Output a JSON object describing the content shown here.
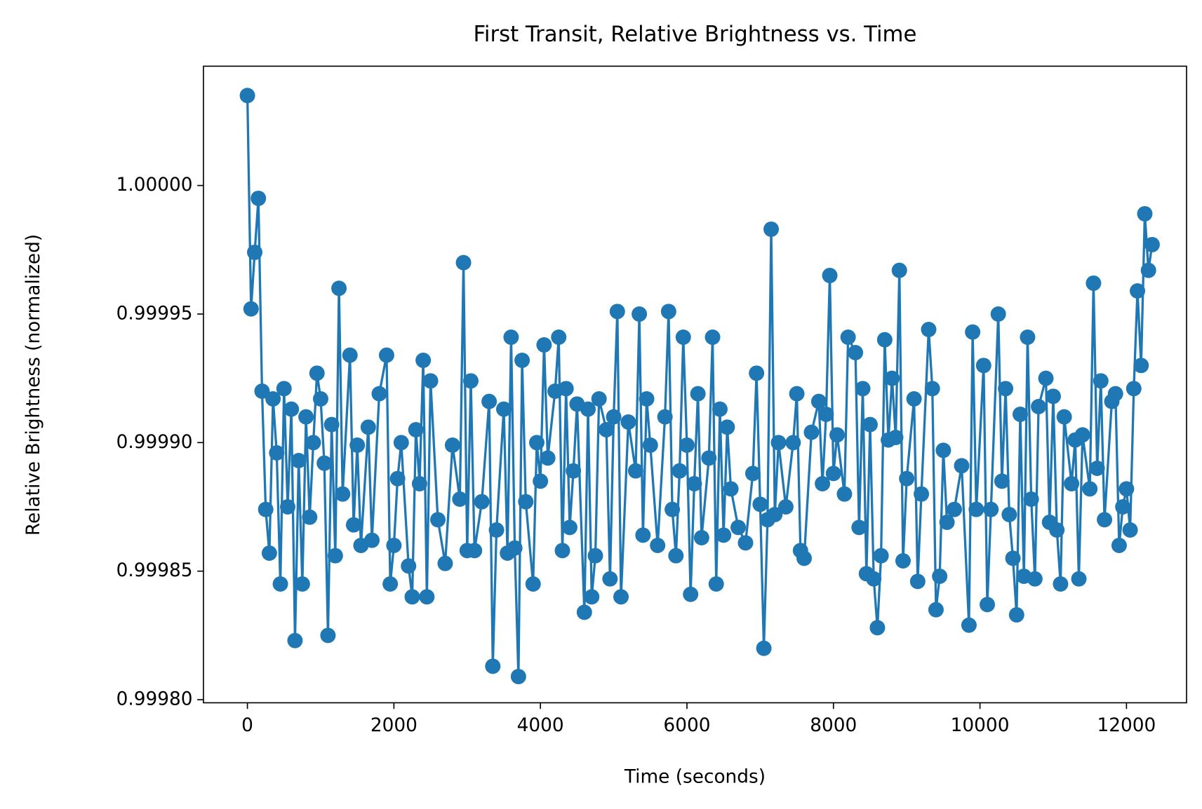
{
  "chart_data": {
    "type": "line",
    "title": "First Transit, Relative Brightness vs. Time",
    "xlabel": "Time (seconds)",
    "ylabel": "Relative Brightness (normalized)",
    "color": "#1f77b4",
    "marker": true,
    "grid": false,
    "xlim": [
      -600,
      12820
    ],
    "ylim": [
      0.9997988,
      1.0000464
    ],
    "xticks": [
      0,
      2000,
      4000,
      6000,
      8000,
      10000,
      12000
    ],
    "yticks": [
      {
        "value": 0.9998,
        "label": "0.99980"
      },
      {
        "value": 0.99985,
        "label": "0.99985"
      },
      {
        "value": 0.9999,
        "label": "0.99990"
      },
      {
        "value": 0.99995,
        "label": "0.99995"
      },
      {
        "value": 1.0,
        "label": "1.00000"
      }
    ],
    "x": [
      0,
      50,
      100,
      150,
      200,
      250,
      300,
      350,
      400,
      450,
      500,
      550,
      600,
      650,
      700,
      750,
      800,
      850,
      900,
      950,
      1000,
      1050,
      1100,
      1150,
      1200,
      1250,
      1300,
      1400,
      1450,
      1500,
      1550,
      1650,
      1700,
      1800,
      1900,
      1950,
      2000,
      2050,
      2100,
      2200,
      2250,
      2300,
      2350,
      2400,
      2450,
      2500,
      2600,
      2700,
      2800,
      2900,
      2950,
      3000,
      3050,
      3100,
      3200,
      3300,
      3350,
      3400,
      3500,
      3550,
      3600,
      3650,
      3700,
      3750,
      3800,
      3900,
      3950,
      4000,
      4050,
      4100,
      4200,
      4250,
      4300,
      4350,
      4400,
      4450,
      4500,
      4600,
      4650,
      4700,
      4750,
      4800,
      4900,
      4950,
      5000,
      5050,
      5100,
      5200,
      5300,
      5350,
      5400,
      5450,
      5500,
      5600,
      5700,
      5750,
      5800,
      5850,
      5900,
      5950,
      6000,
      6050,
      6100,
      6150,
      6200,
      6300,
      6350,
      6400,
      6450,
      6500,
      6550,
      6600,
      6700,
      6800,
      6900,
      6950,
      7000,
      7050,
      7100,
      7150,
      7200,
      7250,
      7350,
      7450,
      7500,
      7550,
      7600,
      7700,
      7800,
      7850,
      7900,
      7950,
      8000,
      8050,
      8150,
      8200,
      8300,
      8350,
      8400,
      8450,
      8500,
      8550,
      8600,
      8650,
      8700,
      8750,
      8800,
      8850,
      8900,
      8950,
      9000,
      9100,
      9150,
      9200,
      9300,
      9350,
      9400,
      9450,
      9500,
      9550,
      9650,
      9750,
      9850,
      9900,
      9950,
      10050,
      10100,
      10150,
      10250,
      10300,
      10350,
      10400,
      10450,
      10500,
      10550,
      10600,
      10650,
      10700,
      10750,
      10800,
      10900,
      10950,
      11000,
      11050,
      11100,
      11150,
      11250,
      11300,
      11350,
      11400,
      11500,
      11550,
      11600,
      11650,
      11700,
      11800,
      11850,
      11900,
      11950,
      12000,
      12050,
      12100,
      12150,
      12200,
      12250,
      12300,
      12350
    ],
    "values": [
      1.000035,
      0.999952,
      0.999974,
      0.999995,
      0.99992,
      0.999874,
      0.999857,
      0.999917,
      0.999896,
      0.999845,
      0.999921,
      0.999875,
      0.999913,
      0.999823,
      0.999893,
      0.999845,
      0.99991,
      0.999871,
      0.9999,
      0.999927,
      0.999917,
      0.999892,
      0.999825,
      0.999907,
      0.999856,
      0.99996,
      0.99988,
      0.999934,
      0.999868,
      0.999899,
      0.99986,
      0.999906,
      0.999862,
      0.999919,
      0.999934,
      0.999845,
      0.99986,
      0.999886,
      0.9999,
      0.999852,
      0.99984,
      0.999905,
      0.999884,
      0.999932,
      0.99984,
      0.999924,
      0.99987,
      0.999853,
      0.999899,
      0.999878,
      0.99997,
      0.999858,
      0.999924,
      0.999858,
      0.999877,
      0.999916,
      0.999813,
      0.999866,
      0.999913,
      0.999857,
      0.999941,
      0.999859,
      0.999809,
      0.999932,
      0.999877,
      0.999845,
      0.9999,
      0.999885,
      0.999938,
      0.999894,
      0.99992,
      0.999941,
      0.999858,
      0.999921,
      0.999867,
      0.999889,
      0.999915,
      0.999834,
      0.999913,
      0.99984,
      0.999856,
      0.999917,
      0.999905,
      0.999847,
      0.99991,
      0.999951,
      0.99984,
      0.999908,
      0.999889,
      0.99995,
      0.999864,
      0.999917,
      0.999899,
      0.99986,
      0.99991,
      0.999951,
      0.999874,
      0.999856,
      0.999889,
      0.999941,
      0.999899,
      0.999841,
      0.999884,
      0.999919,
      0.999863,
      0.999894,
      0.999941,
      0.999845,
      0.999913,
      0.999864,
      0.999906,
      0.999882,
      0.999867,
      0.999861,
      0.999888,
      0.999927,
      0.999876,
      0.99982,
      0.99987,
      0.999983,
      0.999872,
      0.9999,
      0.999875,
      0.9999,
      0.999919,
      0.999858,
      0.999855,
      0.999904,
      0.999916,
      0.999884,
      0.999911,
      0.999965,
      0.999888,
      0.999903,
      0.99988,
      0.999941,
      0.999935,
      0.999867,
      0.999921,
      0.999849,
      0.999907,
      0.999847,
      0.999828,
      0.999856,
      0.99994,
      0.999901,
      0.999925,
      0.999902,
      0.999967,
      0.999854,
      0.999886,
      0.999917,
      0.999846,
      0.99988,
      0.999944,
      0.999921,
      0.999835,
      0.999848,
      0.999897,
      0.999869,
      0.999874,
      0.999891,
      0.999829,
      0.999943,
      0.999874,
      0.99993,
      0.999837,
      0.999874,
      0.99995,
      0.999885,
      0.999921,
      0.999872,
      0.999855,
      0.999833,
      0.999911,
      0.999848,
      0.999941,
      0.999878,
      0.999847,
      0.999914,
      0.999925,
      0.999869,
      0.999918,
      0.999866,
      0.999845,
      0.99991,
      0.999884,
      0.999901,
      0.999847,
      0.999903,
      0.999882,
      0.999962,
      0.99989,
      0.999924,
      0.99987,
      0.999916,
      0.999919,
      0.99986,
      0.999875,
      0.999882,
      0.999866,
      0.999921,
      0.999959,
      0.99993,
      0.999989,
      0.999967,
      0.999977
    ]
  }
}
